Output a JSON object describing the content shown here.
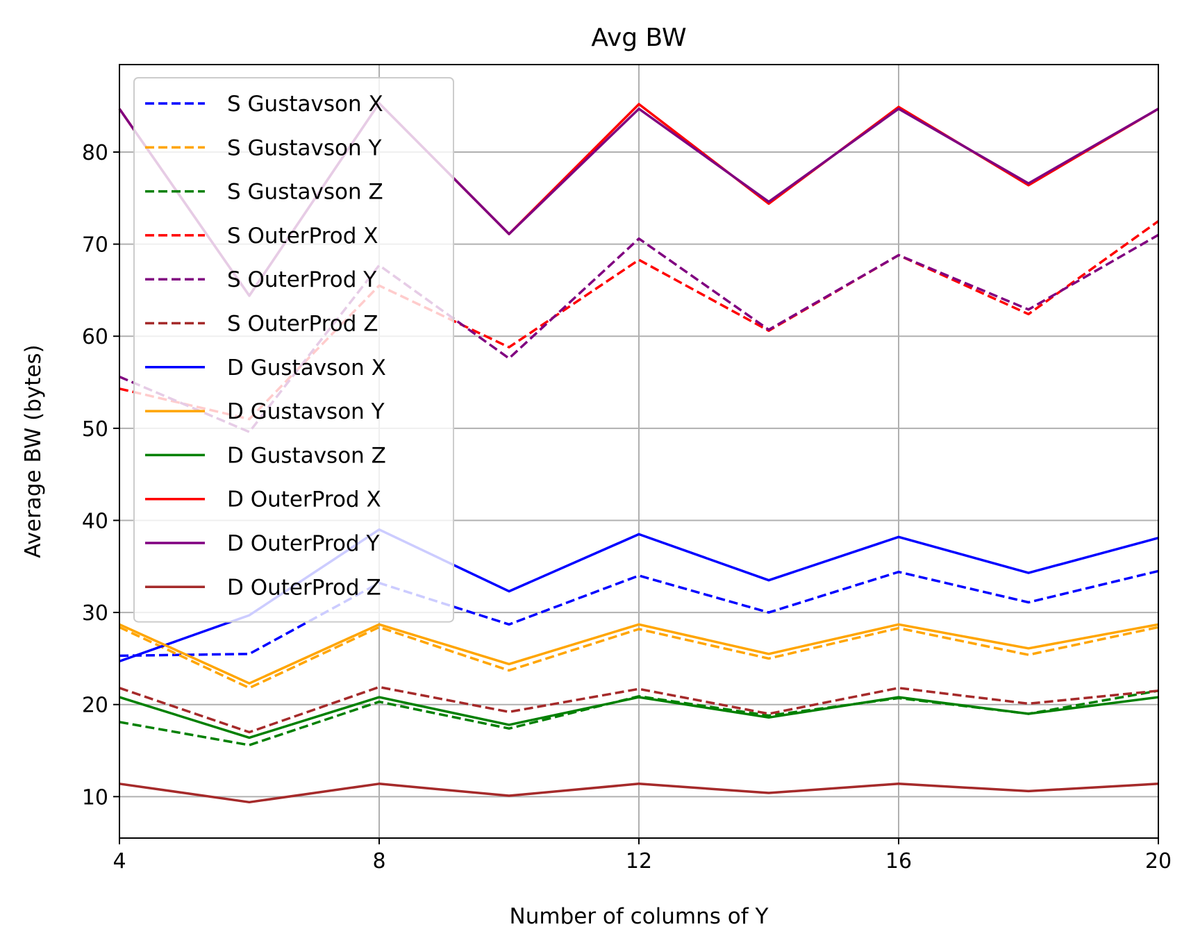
{
  "chart_data": {
    "type": "line",
    "title": "Avg BW",
    "xlabel": "Number of columns of Y",
    "ylabel": "Average BW (bytes)",
    "xlim": [
      4,
      20
    ],
    "ylim": [
      5.5,
      89.5
    ],
    "xticks": [
      4,
      8,
      12,
      16,
      20
    ],
    "yticks": [
      10,
      20,
      30,
      40,
      50,
      60,
      70,
      80
    ],
    "grid": true,
    "legend": "upper left",
    "x": [
      4,
      6,
      8,
      10,
      12,
      14,
      16,
      18,
      20
    ],
    "series": [
      {
        "name": "S Gustavson X",
        "color": "#0000ff",
        "dash": "dashed",
        "values": [
          25.3,
          25.5,
          33.2,
          28.7,
          34.0,
          30.0,
          34.4,
          31.1,
          34.5
        ]
      },
      {
        "name": "S Gustavson Y",
        "color": "#ffa500",
        "dash": "dashed",
        "values": [
          28.4,
          21.8,
          28.4,
          23.7,
          28.2,
          25.0,
          28.3,
          25.4,
          28.4
        ]
      },
      {
        "name": "S Gustavson Z",
        "color": "#008000",
        "dash": "dashed",
        "values": [
          18.1,
          15.6,
          20.3,
          17.4,
          20.9,
          18.8,
          20.7,
          19.0,
          21.5
        ]
      },
      {
        "name": "S OuterProd X",
        "color": "#ff0000",
        "dash": "dashed",
        "values": [
          54.3,
          51.0,
          65.5,
          58.8,
          68.3,
          60.6,
          68.8,
          62.4,
          72.5
        ]
      },
      {
        "name": "S OuterProd Y",
        "color": "#800080",
        "dash": "dashed",
        "values": [
          55.6,
          49.6,
          67.7,
          57.6,
          70.6,
          60.7,
          68.8,
          62.9,
          71.0
        ]
      },
      {
        "name": "S OuterProd Z",
        "color": "#a52a2a",
        "dash": "dashed",
        "values": [
          21.8,
          17.0,
          21.9,
          19.2,
          21.7,
          19.0,
          21.8,
          20.1,
          21.5
        ]
      },
      {
        "name": "D Gustavson X",
        "color": "#0000ff",
        "dash": "solid",
        "values": [
          24.7,
          29.7,
          39.0,
          32.3,
          38.5,
          33.5,
          38.2,
          34.3,
          38.1
        ]
      },
      {
        "name": "D Gustavson Y",
        "color": "#ffa500",
        "dash": "solid",
        "values": [
          28.7,
          22.3,
          28.7,
          24.4,
          28.7,
          25.5,
          28.7,
          26.1,
          28.7
        ]
      },
      {
        "name": "D Gustavson Z",
        "color": "#008000",
        "dash": "solid",
        "values": [
          20.8,
          16.4,
          20.8,
          17.8,
          20.8,
          18.6,
          20.8,
          19.0,
          20.8
        ]
      },
      {
        "name": "D OuterProd X",
        "color": "#ff0000",
        "dash": "solid",
        "values": [
          84.7,
          64.4,
          85.3,
          71.1,
          85.2,
          74.4,
          84.9,
          76.4,
          84.7
        ]
      },
      {
        "name": "D OuterProd Y",
        "color": "#800080",
        "dash": "solid",
        "values": [
          84.7,
          64.4,
          85.3,
          71.1,
          84.7,
          74.6,
          84.7,
          76.6,
          84.7
        ]
      },
      {
        "name": "D OuterProd Z",
        "color": "#a52a2a",
        "dash": "solid",
        "values": [
          11.4,
          9.4,
          11.4,
          10.1,
          11.4,
          10.4,
          11.4,
          10.6,
          11.4
        ]
      }
    ]
  }
}
